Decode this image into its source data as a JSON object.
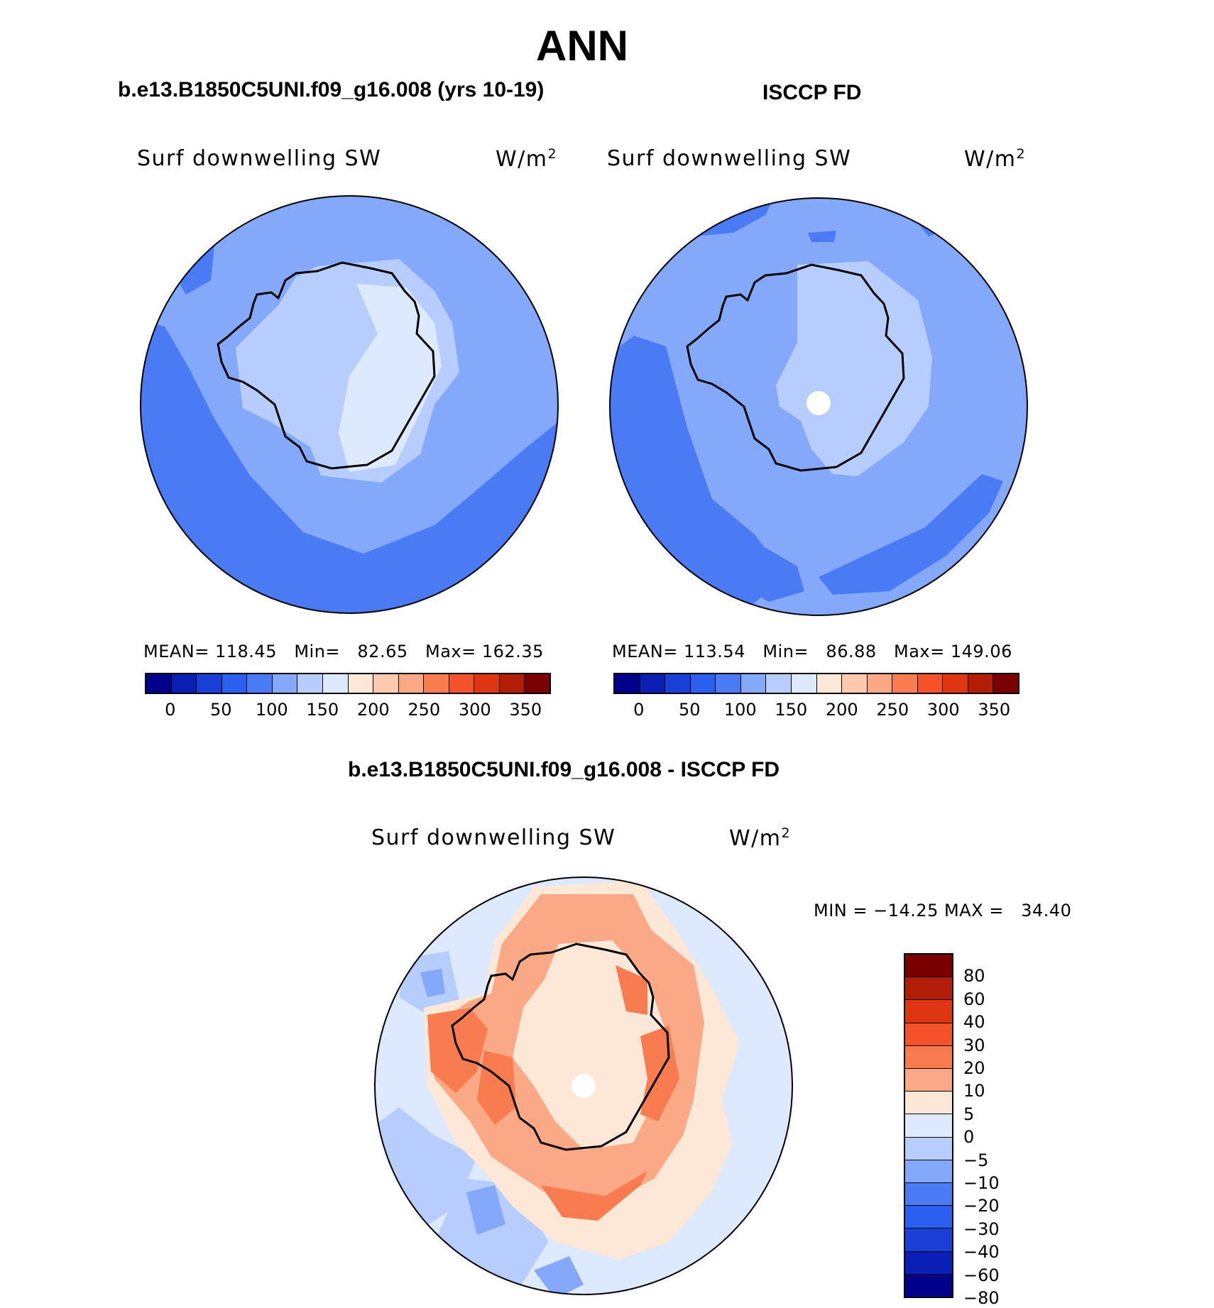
{
  "figure": {
    "season": "ANN"
  },
  "panel_model": {
    "case_title": "b.e13.B1850C5UNI.f09_g16.008 (yrs 10-19)",
    "variable_label": "Surf downwelling SW",
    "units_base": "W/m",
    "units_sup": "2",
    "stats_text": "MEAN= 118.45   Min=   82.65   Max= 162.35"
  },
  "panel_obs": {
    "case_title": "ISCCP FD",
    "variable_label": "Surf downwelling SW",
    "units_base": "W/m",
    "units_sup": "2",
    "stats_text": "MEAN= 113.54   Min=   86.88   Max= 149.06"
  },
  "panel_diff": {
    "case_title": "b.e13.B1850C5UNI.f09_g16.008 - ISCCP FD",
    "variable_label": "Surf downwelling SW",
    "units_base": "W/m",
    "units_sup": "2",
    "stats_text": "MIN = −14.25 MAX =   34.40"
  },
  "colorbar_abs": {
    "colors": [
      "#00008b",
      "#0a1fb4",
      "#1a3fd6",
      "#2b5ff0",
      "#4a7bf4",
      "#84a9fb",
      "#b6cdfd",
      "#dce9fe",
      "#fde8d8",
      "#fdcab0",
      "#fba886",
      "#f87c50",
      "#f5512a",
      "#de3512",
      "#b21d08",
      "#7a0000"
    ],
    "labels": [
      "0",
      "50",
      "100",
      "150",
      "200",
      "250",
      "300",
      "350"
    ]
  },
  "colorbar_diff": {
    "colors": [
      "#7a0000",
      "#b21d08",
      "#de3512",
      "#f5512a",
      "#f87c50",
      "#fba886",
      "#fde8d8",
      "#dce9fe",
      "#b6cdfd",
      "#84a9fb",
      "#4a7bf4",
      "#2b5ff0",
      "#1a3fd6",
      "#0a1fb4",
      "#00008b"
    ],
    "labels": [
      "80",
      "60",
      "40",
      "30",
      "20",
      "10",
      "5",
      "0",
      "−5",
      "−10",
      "−20",
      "−30",
      "−40",
      "−60",
      "−80"
    ]
  }
}
